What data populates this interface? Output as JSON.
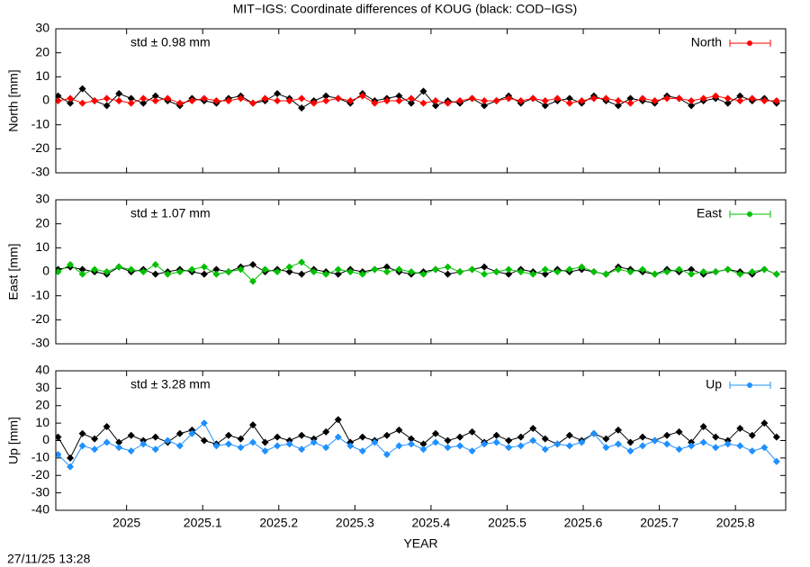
{
  "title": "MIT−IGS: Coordinate differences of KOUG (black: COD−IGS)",
  "timestamp": "27/11/25 13:28",
  "chart_data": [
    {
      "type": "line",
      "ylabel": "North [mm]",
      "annotation": "std ± 0.98 mm",
      "annotation_color": "#ff0000",
      "ylim": [
        -30,
        30
      ],
      "yticks": [
        -30,
        -20,
        -10,
        0,
        10,
        20,
        30
      ],
      "xlim": [
        2024.907,
        2025.866
      ],
      "xticks": [
        2025,
        2025.1,
        2025.2,
        2025.3,
        2025.4,
        2025.5,
        2025.6,
        2025.7,
        2025.8
      ],
      "legend": "upper right",
      "x": [
        2024.91,
        2024.926,
        2024.942,
        2024.958,
        2024.974,
        2024.99,
        2025.006,
        2025.022,
        2025.038,
        2025.054,
        2025.07,
        2025.086,
        2025.102,
        2025.118,
        2025.134,
        2025.15,
        2025.166,
        2025.182,
        2025.198,
        2025.214,
        2025.23,
        2025.246,
        2025.262,
        2025.278,
        2025.294,
        2025.31,
        2025.326,
        2025.342,
        2025.358,
        2025.374,
        2025.39,
        2025.406,
        2025.422,
        2025.438,
        2025.454,
        2025.47,
        2025.486,
        2025.502,
        2025.518,
        2025.534,
        2025.55,
        2025.566,
        2025.582,
        2025.598,
        2025.614,
        2025.63,
        2025.646,
        2025.662,
        2025.678,
        2025.694,
        2025.71,
        2025.726,
        2025.742,
        2025.758,
        2025.774,
        2025.79,
        2025.806,
        2025.822,
        2025.838,
        2025.854
      ],
      "series": [
        {
          "color": "#000000",
          "values": [
            2,
            -1,
            5,
            0,
            -2,
            3,
            1,
            -1,
            2,
            0,
            -2,
            1,
            0,
            -1,
            1,
            2,
            -1,
            0,
            3,
            1,
            -3,
            0,
            2,
            1,
            -1,
            3,
            0,
            1,
            2,
            -1,
            4,
            -2,
            0,
            -1,
            1,
            -2,
            0,
            2,
            -1,
            1,
            -2,
            0,
            1,
            -1,
            2,
            0,
            -2,
            1,
            0,
            -1,
            2,
            1,
            -2,
            0,
            1,
            -1,
            2,
            0,
            1,
            -1
          ]
        },
        {
          "name": "North",
          "color": "#ff0000",
          "values": [
            0,
            1,
            -1,
            0,
            1,
            0,
            -1,
            1,
            0,
            1,
            -1,
            0,
            1,
            0,
            0,
            1,
            -1,
            1,
            0,
            0,
            1,
            -1,
            0,
            1,
            0,
            2,
            -1,
            0,
            0,
            1,
            -1,
            0,
            -1,
            0,
            1,
            0,
            0,
            1,
            0,
            1,
            0,
            1,
            -1,
            0,
            1,
            1,
            0,
            -1,
            1,
            0,
            1,
            1,
            0,
            1,
            2,
            1,
            0,
            1,
            0,
            0
          ]
        }
      ]
    },
    {
      "type": "line",
      "ylabel": "East [mm]",
      "annotation": "std ± 1.07 mm",
      "annotation_color": "#00c000",
      "ylim": [
        -30,
        30
      ],
      "yticks": [
        -30,
        -20,
        -10,
        0,
        10,
        20,
        30
      ],
      "xlim": [
        2024.907,
        2025.866
      ],
      "xticks": [
        2025,
        2025.1,
        2025.2,
        2025.3,
        2025.4,
        2025.5,
        2025.6,
        2025.7,
        2025.8
      ],
      "legend": "upper right",
      "x": [
        2024.91,
        2024.926,
        2024.942,
        2024.958,
        2024.974,
        2024.99,
        2025.006,
        2025.022,
        2025.038,
        2025.054,
        2025.07,
        2025.086,
        2025.102,
        2025.118,
        2025.134,
        2025.15,
        2025.166,
        2025.182,
        2025.198,
        2025.214,
        2025.23,
        2025.246,
        2025.262,
        2025.278,
        2025.294,
        2025.31,
        2025.326,
        2025.342,
        2025.358,
        2025.374,
        2025.39,
        2025.406,
        2025.422,
        2025.438,
        2025.454,
        2025.47,
        2025.486,
        2025.502,
        2025.518,
        2025.534,
        2025.55,
        2025.566,
        2025.582,
        2025.598,
        2025.614,
        2025.63,
        2025.646,
        2025.662,
        2025.678,
        2025.694,
        2025.71,
        2025.726,
        2025.742,
        2025.758,
        2025.774,
        2025.79,
        2025.806,
        2025.822,
        2025.838,
        2025.854
      ],
      "series": [
        {
          "color": "#000000",
          "values": [
            1,
            2,
            1,
            0,
            -1,
            2,
            0,
            1,
            -1,
            0,
            1,
            0,
            -1,
            1,
            0,
            2,
            3,
            0,
            1,
            0,
            -1,
            1,
            0,
            -1,
            1,
            0,
            1,
            2,
            0,
            -1,
            0,
            1,
            -1,
            0,
            1,
            2,
            0,
            -1,
            1,
            0,
            -1,
            1,
            0,
            1,
            0,
            -1,
            2,
            1,
            0,
            -1,
            1,
            0,
            1,
            -1,
            0,
            1,
            0,
            -1,
            1,
            -1
          ]
        },
        {
          "name": "East",
          "color": "#00c000",
          "values": [
            0,
            3,
            -1,
            1,
            0,
            2,
            1,
            0,
            3,
            -1,
            0,
            1,
            2,
            -1,
            0,
            1,
            -4,
            1,
            0,
            2,
            4,
            0,
            -1,
            1,
            0,
            -1,
            1,
            0,
            1,
            0,
            -1,
            1,
            2,
            0,
            1,
            -1,
            0,
            1,
            0,
            -1,
            1,
            0,
            1,
            2,
            0,
            -1,
            1,
            0,
            1,
            -1,
            0,
            1,
            -1,
            0,
            0,
            1,
            -1,
            0,
            1,
            -1
          ]
        }
      ]
    },
    {
      "type": "line",
      "ylabel": "Up [mm]",
      "xlabel": "YEAR",
      "annotation": "std ± 3.28 mm",
      "annotation_color": "#1e90ff",
      "ylim": [
        -40,
        40
      ],
      "yticks": [
        -40,
        -30,
        -20,
        -10,
        0,
        10,
        20,
        30,
        40
      ],
      "xlim": [
        2024.907,
        2025.866
      ],
      "xticks": [
        2025,
        2025.1,
        2025.2,
        2025.3,
        2025.4,
        2025.5,
        2025.6,
        2025.7,
        2025.8
      ],
      "legend": "upper right",
      "x": [
        2024.91,
        2024.926,
        2024.942,
        2024.958,
        2024.974,
        2024.99,
        2025.006,
        2025.022,
        2025.038,
        2025.054,
        2025.07,
        2025.086,
        2025.102,
        2025.118,
        2025.134,
        2025.15,
        2025.166,
        2025.182,
        2025.198,
        2025.214,
        2025.23,
        2025.246,
        2025.262,
        2025.278,
        2025.294,
        2025.31,
        2025.326,
        2025.342,
        2025.358,
        2025.374,
        2025.39,
        2025.406,
        2025.422,
        2025.438,
        2025.454,
        2025.47,
        2025.486,
        2025.502,
        2025.518,
        2025.534,
        2025.55,
        2025.566,
        2025.582,
        2025.598,
        2025.614,
        2025.63,
        2025.646,
        2025.662,
        2025.678,
        2025.694,
        2025.71,
        2025.726,
        2025.742,
        2025.758,
        2025.774,
        2025.79,
        2025.806,
        2025.822,
        2025.838,
        2025.854
      ],
      "series": [
        {
          "color": "#000000",
          "values": [
            2,
            -10,
            4,
            1,
            8,
            -1,
            3,
            0,
            2,
            -1,
            4,
            6,
            0,
            -2,
            3,
            1,
            9,
            -1,
            2,
            0,
            3,
            1,
            5,
            12,
            -1,
            2,
            0,
            3,
            6,
            1,
            -2,
            4,
            0,
            2,
            5,
            -1,
            3,
            0,
            2,
            7,
            1,
            -2,
            3,
            0,
            4,
            1,
            6,
            -1,
            2,
            0,
            3,
            5,
            -1,
            8,
            2,
            0,
            7,
            3,
            10,
            2
          ]
        },
        {
          "name": "Up",
          "color": "#1e90ff",
          "values": [
            -8,
            -15,
            -3,
            -5,
            -1,
            -4,
            -6,
            -2,
            -5,
            0,
            -3,
            4,
            10,
            -3,
            -2,
            -4,
            -1,
            -6,
            -3,
            -2,
            -5,
            -1,
            -4,
            2,
            -3,
            -6,
            -1,
            -8,
            -3,
            -2,
            -5,
            -1,
            -4,
            -3,
            -6,
            -2,
            -1,
            -4,
            -3,
            0,
            -5,
            -2,
            -3,
            -1,
            4,
            -4,
            -2,
            -6,
            -3,
            0,
            -2,
            -5,
            -3,
            -1,
            -4,
            -2,
            -3,
            -6,
            -4,
            -12
          ]
        }
      ]
    }
  ]
}
